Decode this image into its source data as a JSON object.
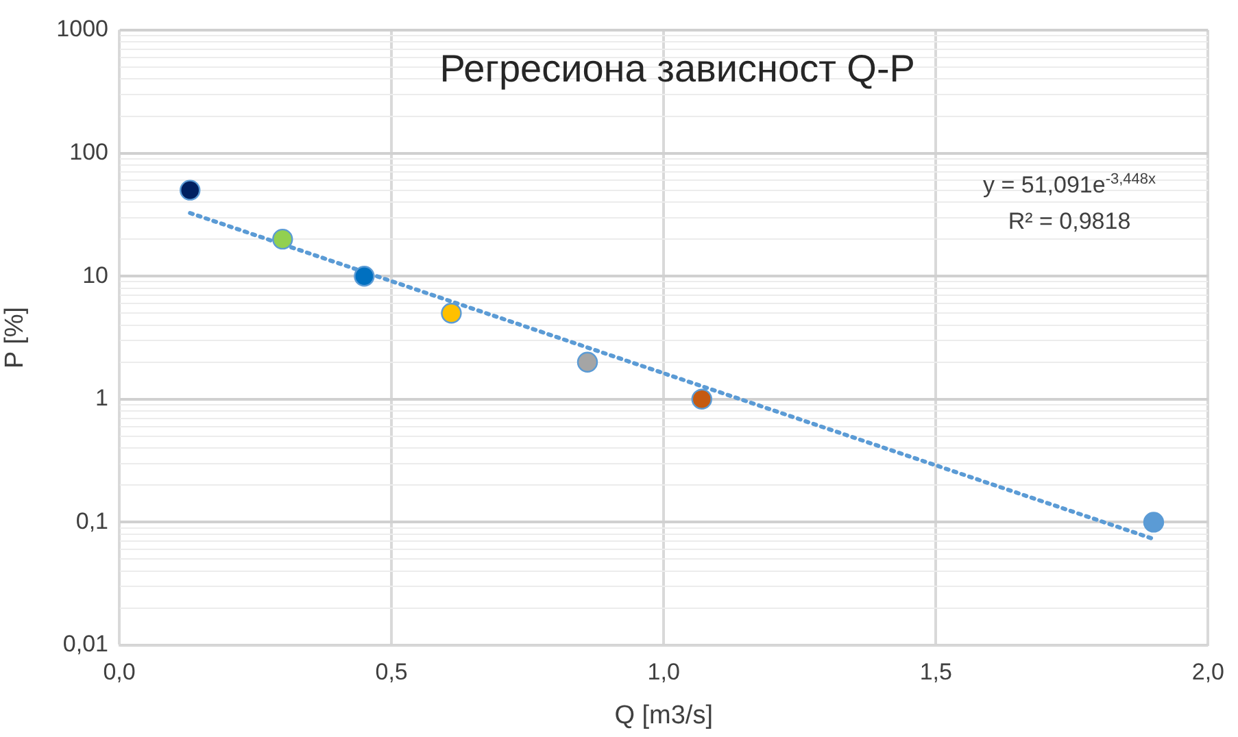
{
  "chart_data": {
    "type": "scatter",
    "title": "Регресиона зависност Q-P",
    "xlabel": "Q [m3/s]",
    "ylabel": "P [%]",
    "log": "y",
    "grid": true,
    "legend": false,
    "marker": "circle",
    "xlim": [
      0,
      2
    ],
    "xticks": [
      {
        "value": 0,
        "label": "0,0"
      },
      {
        "value": 0.5,
        "label": "0,5"
      },
      {
        "value": 1,
        "label": "1,0"
      },
      {
        "value": 1.5,
        "label": "1,5"
      },
      {
        "value": 2,
        "label": "2,0"
      }
    ],
    "ylim": [
      0.01,
      1000
    ],
    "yticks": [
      {
        "value": 0.01,
        "label": "0,01"
      },
      {
        "value": 0.02,
        "label": null
      },
      {
        "value": 0.03,
        "label": null
      },
      {
        "value": 0.04,
        "label": null
      },
      {
        "value": 0.05,
        "label": null
      },
      {
        "value": 0.06,
        "label": null
      },
      {
        "value": 0.07,
        "label": null
      },
      {
        "value": 0.08,
        "label": null
      },
      {
        "value": 0.09,
        "label": null
      },
      {
        "value": 0.1,
        "label": "0,1"
      },
      {
        "value": 0.2,
        "label": null
      },
      {
        "value": 0.3,
        "label": null
      },
      {
        "value": 0.4,
        "label": null
      },
      {
        "value": 0.5,
        "label": null
      },
      {
        "value": 0.6,
        "label": null
      },
      {
        "value": 0.7,
        "label": null
      },
      {
        "value": 0.8,
        "label": null
      },
      {
        "value": 0.9,
        "label": null
      },
      1,
      {
        "value": 2,
        "label": null
      },
      {
        "value": 3,
        "label": null
      },
      {
        "value": 4,
        "label": null
      },
      {
        "value": 5,
        "label": null
      },
      {
        "value": 6,
        "label": null
      },
      {
        "value": 7,
        "label": null
      },
      {
        "value": 8,
        "label": null
      },
      {
        "value": 9,
        "label": null
      },
      10,
      {
        "value": 20,
        "label": null
      },
      {
        "value": 30,
        "label": null
      },
      {
        "value": 40,
        "label": null
      },
      {
        "value": 50,
        "label": null
      },
      {
        "value": 60,
        "label": null
      },
      {
        "value": 70,
        "label": null
      },
      {
        "value": 80,
        "label": null
      },
      {
        "value": 90,
        "label": null
      },
      100,
      {
        "value": 200,
        "label": null
      },
      {
        "value": 300,
        "label": null
      },
      {
        "value": 400,
        "label": null
      },
      {
        "value": 500,
        "label": null
      },
      {
        "value": 600,
        "label": null
      },
      {
        "value": 700,
        "label": null
      },
      {
        "value": 800,
        "label": null
      },
      {
        "value": 900,
        "label": null
      },
      1000
    ],
    "series": [
      {
        "type": "scatter",
        "x": [
          0.13,
          0.3,
          0.45,
          0.61,
          0.86,
          1.07,
          1.9
        ],
        "values": [
          50,
          20,
          10,
          5,
          2,
          1,
          0.1
        ],
        "colors": [
          "#002060",
          "#92d050",
          "#0070c0",
          "#ffc000",
          "#a5a5a5",
          "#c55a11",
          "#5b9bd5"
        ]
      },
      {
        "type": "line",
        "x": [
          0.13,
          1.9
        ],
        "values": [
          32.6,
          0.073
        ],
        "color": "#5b9bd5",
        "line_style": "dotted",
        "marker": "none"
      }
    ],
    "annotations": [
      "y = 51,091e$^{-3,448x}$",
      "R² = 0,9818"
    ]
  }
}
